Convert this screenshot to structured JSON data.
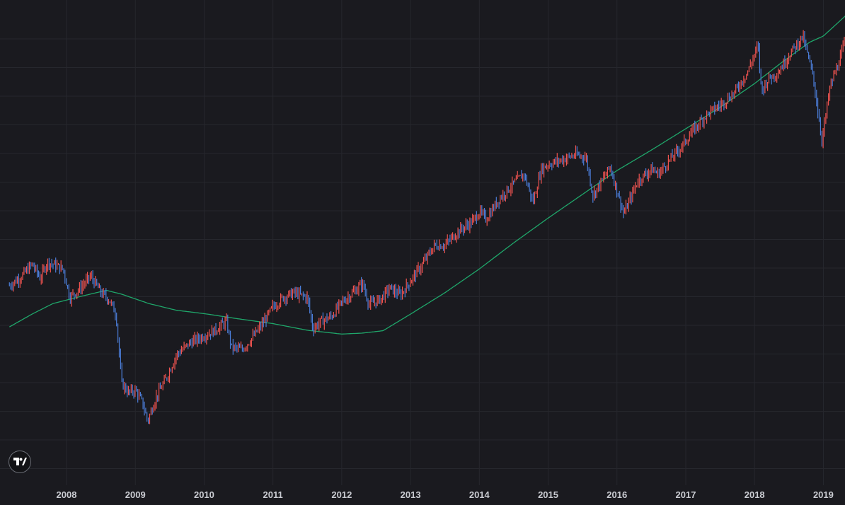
{
  "logo": {
    "icon": "tradingview-logo-icon"
  },
  "colors": {
    "background": "#1a1a1f",
    "grid": "#26272d",
    "up_bar": "#ef5350",
    "down_bar": "#4b7dd8",
    "moving_average": "#1fa66a",
    "axis_text": "#c9cbd1"
  },
  "chart_data": {
    "type": "line",
    "x_unit": "year",
    "grid": true,
    "x_ticks": [
      "2008",
      "2009",
      "2010",
      "2011",
      "2012",
      "2013",
      "2014",
      "2015",
      "2016",
      "2017",
      "2018",
      "2019"
    ],
    "x_range": [
      2007.17,
      2019.34
    ],
    "y_axis_labels": "none shown",
    "series": [
      {
        "style": "ohlc-bars",
        "anchors": [
          [
            2007.17,
            0.42
          ],
          [
            2007.35,
            0.44
          ],
          [
            2007.5,
            0.465
          ],
          [
            2007.62,
            0.435
          ],
          [
            2007.72,
            0.47
          ],
          [
            2007.95,
            0.455
          ],
          [
            2008.05,
            0.395
          ],
          [
            2008.2,
            0.415
          ],
          [
            2008.35,
            0.44
          ],
          [
            2008.5,
            0.405
          ],
          [
            2008.62,
            0.39
          ],
          [
            2008.72,
            0.36
          ],
          [
            2008.8,
            0.215
          ],
          [
            2008.9,
            0.195
          ],
          [
            2009.0,
            0.2
          ],
          [
            2009.1,
            0.175
          ],
          [
            2009.18,
            0.135
          ],
          [
            2009.3,
            0.185
          ],
          [
            2009.45,
            0.225
          ],
          [
            2009.6,
            0.275
          ],
          [
            2009.8,
            0.3
          ],
          [
            2010.0,
            0.315
          ],
          [
            2010.15,
            0.325
          ],
          [
            2010.32,
            0.345
          ],
          [
            2010.4,
            0.29
          ],
          [
            2010.55,
            0.285
          ],
          [
            2010.7,
            0.31
          ],
          [
            2010.85,
            0.34
          ],
          [
            2011.0,
            0.375
          ],
          [
            2011.15,
            0.395
          ],
          [
            2011.3,
            0.405
          ],
          [
            2011.5,
            0.395
          ],
          [
            2011.58,
            0.33
          ],
          [
            2011.7,
            0.345
          ],
          [
            2011.85,
            0.355
          ],
          [
            2012.0,
            0.385
          ],
          [
            2012.2,
            0.41
          ],
          [
            2012.3,
            0.425
          ],
          [
            2012.4,
            0.38
          ],
          [
            2012.55,
            0.39
          ],
          [
            2012.7,
            0.415
          ],
          [
            2012.85,
            0.4
          ],
          [
            2013.0,
            0.43
          ],
          [
            2013.15,
            0.46
          ],
          [
            2013.35,
            0.505
          ],
          [
            2013.5,
            0.505
          ],
          [
            2013.7,
            0.535
          ],
          [
            2013.9,
            0.555
          ],
          [
            2014.0,
            0.575
          ],
          [
            2014.1,
            0.56
          ],
          [
            2014.3,
            0.605
          ],
          [
            2014.5,
            0.635
          ],
          [
            2014.65,
            0.655
          ],
          [
            2014.78,
            0.595
          ],
          [
            2014.9,
            0.665
          ],
          [
            2015.0,
            0.675
          ],
          [
            2015.2,
            0.685
          ],
          [
            2015.4,
            0.695
          ],
          [
            2015.55,
            0.69
          ],
          [
            2015.65,
            0.61
          ],
          [
            2015.8,
            0.645
          ],
          [
            2015.9,
            0.67
          ],
          [
            2016.0,
            0.62
          ],
          [
            2016.1,
            0.57
          ],
          [
            2016.3,
            0.64
          ],
          [
            2016.5,
            0.665
          ],
          [
            2016.6,
            0.655
          ],
          [
            2016.8,
            0.69
          ],
          [
            2016.95,
            0.715
          ],
          [
            2017.1,
            0.745
          ],
          [
            2017.3,
            0.78
          ],
          [
            2017.5,
            0.8
          ],
          [
            2017.7,
            0.825
          ],
          [
            2017.9,
            0.87
          ],
          [
            2018.05,
            0.925
          ],
          [
            2018.1,
            0.83
          ],
          [
            2018.2,
            0.855
          ],
          [
            2018.35,
            0.87
          ],
          [
            2018.5,
            0.905
          ],
          [
            2018.7,
            0.945
          ],
          [
            2018.85,
            0.86
          ],
          [
            2018.98,
            0.725
          ],
          [
            2019.1,
            0.84
          ],
          [
            2019.25,
            0.9
          ],
          [
            2019.34,
            0.95
          ]
        ]
      },
      {
        "style": "moving-average-line",
        "anchors": [
          [
            2007.17,
            0.333
          ],
          [
            2007.5,
            0.36
          ],
          [
            2007.8,
            0.382
          ],
          [
            2008.2,
            0.397
          ],
          [
            2008.58,
            0.41
          ],
          [
            2008.8,
            0.402
          ],
          [
            2009.2,
            0.382
          ],
          [
            2009.6,
            0.368
          ],
          [
            2010.0,
            0.361
          ],
          [
            2010.5,
            0.35
          ],
          [
            2011.0,
            0.34
          ],
          [
            2011.5,
            0.326
          ],
          [
            2012.0,
            0.318
          ],
          [
            2012.3,
            0.32
          ],
          [
            2012.6,
            0.325
          ],
          [
            2013.0,
            0.36
          ],
          [
            2013.5,
            0.405
          ],
          [
            2014.0,
            0.455
          ],
          [
            2014.5,
            0.51
          ],
          [
            2015.0,
            0.562
          ],
          [
            2015.5,
            0.612
          ],
          [
            2016.0,
            0.662
          ],
          [
            2016.5,
            0.705
          ],
          [
            2017.0,
            0.75
          ],
          [
            2017.5,
            0.795
          ],
          [
            2018.0,
            0.845
          ],
          [
            2018.4,
            0.89
          ],
          [
            2018.8,
            0.932
          ],
          [
            2019.0,
            0.945
          ],
          [
            2019.34,
            0.99
          ]
        ]
      }
    ]
  }
}
